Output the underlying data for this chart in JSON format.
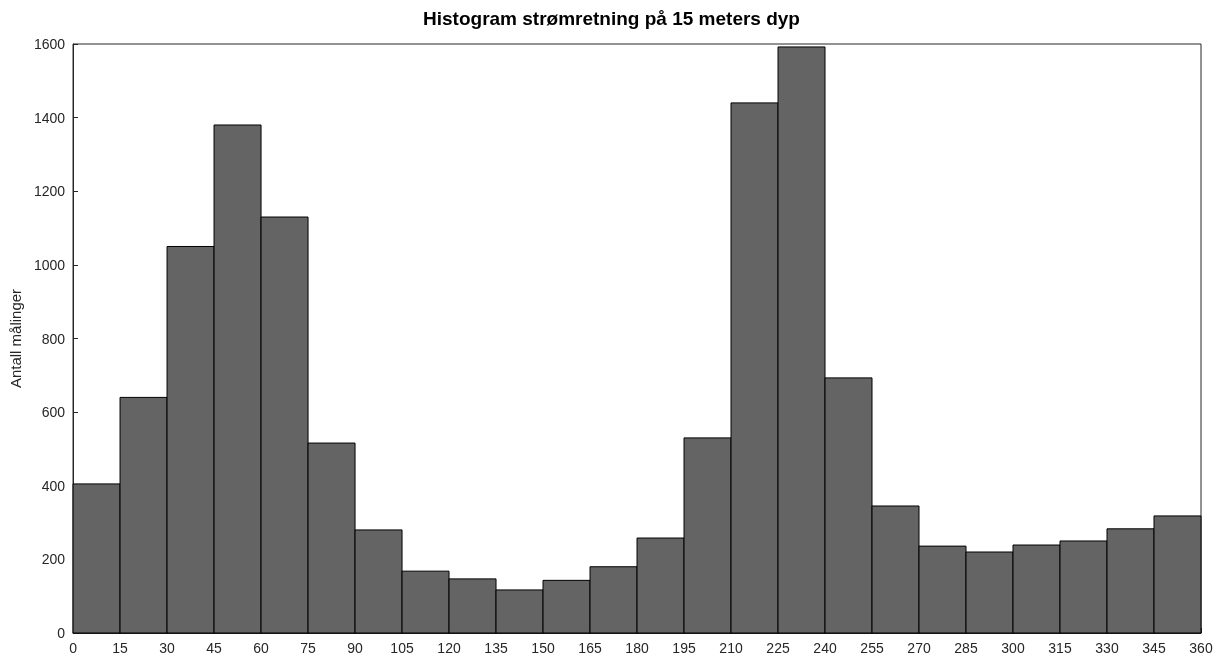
{
  "chart_data": {
    "type": "histogram",
    "title": "Histogram strømretning på 15 meters dyp",
    "ylabel": "Antall målinger",
    "bins": [
      0,
      15,
      30,
      45,
      60,
      75,
      90,
      105,
      120,
      135,
      150,
      165,
      180,
      195,
      210,
      225,
      240,
      255,
      270,
      285,
      300,
      315,
      330,
      345,
      360
    ],
    "values": [
      405,
      640,
      1050,
      1380,
      1130,
      516,
      280,
      168,
      147,
      117,
      143,
      180,
      258,
      530,
      1440,
      1592,
      693,
      345,
      236,
      220,
      239,
      250,
      283,
      318
    ],
    "color": "#646464",
    "xlim": [
      0,
      360
    ],
    "xticks": [
      0,
      15,
      30,
      45,
      60,
      75,
      90,
      105,
      120,
      135,
      150,
      165,
      180,
      195,
      210,
      225,
      240,
      255,
      270,
      285,
      300,
      315,
      330,
      345,
      360
    ],
    "ylim": [
      0,
      1600
    ],
    "yticks": [
      0,
      200,
      400,
      600,
      800,
      1000,
      1200,
      1400,
      1600
    ],
    "grid": false
  }
}
